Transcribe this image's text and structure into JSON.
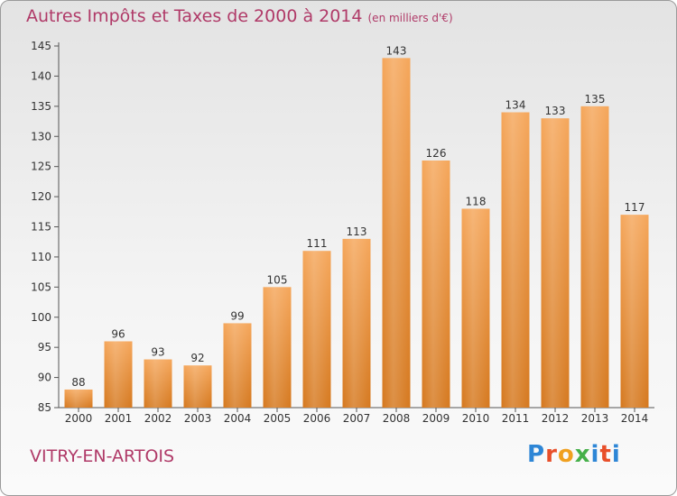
{
  "header": {
    "title": "Autres Impôts et Taxes de 2000 à 2014",
    "unit": "(en milliers d'€)"
  },
  "footer": {
    "town": "VITRY-EN-ARTOIS",
    "logo": [
      "P",
      "r",
      "o",
      "x",
      "i",
      "t",
      "i"
    ]
  },
  "chart_data": {
    "type": "bar",
    "title": "Autres Impôts et Taxes de 2000 à 2014",
    "subtitle": "(en milliers d'€)",
    "xlabel": "",
    "ylabel": "",
    "categories": [
      "2000",
      "2001",
      "2002",
      "2003",
      "2004",
      "2005",
      "2006",
      "2007",
      "2008",
      "2009",
      "2010",
      "2011",
      "2012",
      "2013",
      "2014"
    ],
    "values": [
      88,
      96,
      93,
      92,
      99,
      105,
      111,
      113,
      143,
      126,
      118,
      134,
      133,
      135,
      117
    ],
    "ylim": [
      85,
      145
    ],
    "yticks": [
      85,
      90,
      95,
      100,
      105,
      110,
      115,
      120,
      125,
      130,
      135,
      140,
      145
    ],
    "grid": false,
    "legend": "none",
    "colors": {
      "bar_top": "#f5a65a",
      "bar_bottom": "#d5781e",
      "axis": "#555555",
      "title": "#b03a68"
    }
  }
}
